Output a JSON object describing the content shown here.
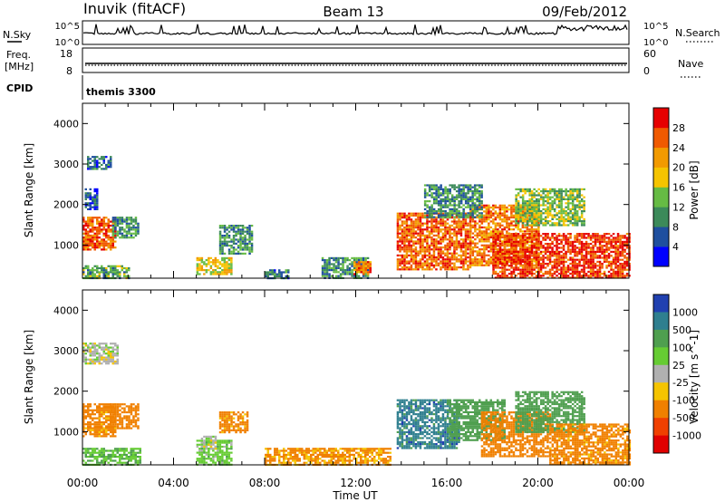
{
  "header": {
    "station": "Inuvik (fitACF)",
    "beam": "Beam 13",
    "date": "09/Feb/2012"
  },
  "top_panels": {
    "nsky_label": "N.Sky",
    "nsky_ticks": [
      "10^5",
      "10^0"
    ],
    "nsearch_label": "N.Search",
    "nsearch_ticks": [
      "10^5",
      "10^0"
    ],
    "freq_label_1": "Freq.",
    "freq_label_2": "[MHz]",
    "freq_ticks": [
      "18",
      "8"
    ],
    "nave_label": "Nave",
    "nave_ticks": [
      "60",
      "0"
    ],
    "cpid_label": "CPID",
    "cpid_value": "themis 3300"
  },
  "colors": {
    "power_scale": [
      "#0000ff",
      "#1f4f9f",
      "#3c8a5a",
      "#66bb44",
      "#f5c400",
      "#f29a00",
      "#f05a00",
      "#e60000"
    ],
    "velocity_scale": [
      "#2040b0",
      "#2f7f8f",
      "#4f9f4f",
      "#66cc33",
      "#b0b0b0",
      "#f5c400",
      "#f08000",
      "#f04000",
      "#e00000"
    ]
  },
  "chart_data": [
    {
      "type": "heatmap",
      "title": "Power",
      "ylabel": "Slant Range [km]",
      "xlabel": "Time UT",
      "x_ticks": [
        "00:00",
        "04:00",
        "08:00",
        "12:00",
        "16:00",
        "20:00",
        "00:00"
      ],
      "xlim_hours": [
        0,
        24
      ],
      "y_ticks": [
        1000,
        2000,
        3000,
        4000
      ],
      "ylim": [
        180,
        4500
      ],
      "colorbar": {
        "label": "Power [dB]",
        "ticks": [
          4,
          8,
          12,
          16,
          20,
          24,
          28
        ],
        "range": [
          0,
          32
        ]
      },
      "regions": [
        {
          "t0": 0.0,
          "t1": 1.4,
          "r0": 900,
          "r1": 1700,
          "value": 26
        },
        {
          "t0": 1.3,
          "t1": 2.4,
          "r0": 1200,
          "r1": 1700,
          "value": 10
        },
        {
          "t0": 0.2,
          "t1": 1.2,
          "r0": 2900,
          "r1": 3200,
          "value": 8
        },
        {
          "t0": 0.1,
          "t1": 0.6,
          "r0": 1900,
          "r1": 2400,
          "value": 6
        },
        {
          "t0": 0.0,
          "t1": 2.0,
          "r0": 200,
          "r1": 500,
          "value": 12
        },
        {
          "t0": 5.0,
          "t1": 6.5,
          "r0": 300,
          "r1": 700,
          "value": 18
        },
        {
          "t0": 6.0,
          "t1": 7.4,
          "r0": 800,
          "r1": 1500,
          "value": 10
        },
        {
          "t0": 8.0,
          "t1": 9.0,
          "r0": 200,
          "r1": 400,
          "value": 8
        },
        {
          "t0": 10.5,
          "t1": 12.5,
          "r0": 200,
          "r1": 700,
          "value": 10
        },
        {
          "t0": 11.9,
          "t1": 12.6,
          "r0": 300,
          "r1": 600,
          "value": 24
        },
        {
          "t0": 13.8,
          "t1": 17.0,
          "r0": 400,
          "r1": 1800,
          "value": 26
        },
        {
          "t0": 17.0,
          "t1": 20.0,
          "r0": 500,
          "r1": 2000,
          "value": 24
        },
        {
          "t0": 18.0,
          "t1": 24.0,
          "r0": 200,
          "r1": 1300,
          "value": 28
        },
        {
          "t0": 15.0,
          "t1": 17.5,
          "r0": 1700,
          "r1": 2500,
          "value": 10
        },
        {
          "t0": 19.0,
          "t1": 22.0,
          "r0": 1500,
          "r1": 2400,
          "value": 14
        }
      ]
    },
    {
      "type": "heatmap",
      "title": "Velocity",
      "ylabel": "Slant Range [km]",
      "xlabel": "Time UT",
      "x_ticks": [
        "00:00",
        "04:00",
        "08:00",
        "12:00",
        "16:00",
        "20:00",
        "00:00"
      ],
      "xlim_hours": [
        0,
        24
      ],
      "y_ticks": [
        1000,
        2000,
        3000,
        4000
      ],
      "ylim": [
        180,
        4500
      ],
      "colorbar": {
        "label": "Velocity [m s^-1]",
        "ticks": [
          "1000",
          "500",
          "100",
          "25",
          "-25",
          "-100",
          "-500",
          "-1000"
        ]
      },
      "regions": [
        {
          "t0": 0.0,
          "t1": 1.4,
          "r0": 900,
          "r1": 1700,
          "value": -150
        },
        {
          "t0": 1.2,
          "t1": 2.4,
          "r0": 1100,
          "r1": 1700,
          "value": -200
        },
        {
          "t0": 0.0,
          "t1": 1.5,
          "r0": 2700,
          "r1": 3200,
          "value": 0
        },
        {
          "t0": 0.0,
          "t1": 2.5,
          "r0": 200,
          "r1": 600,
          "value": 80
        },
        {
          "t0": 5.0,
          "t1": 6.5,
          "r0": 200,
          "r1": 800,
          "value": 60
        },
        {
          "t0": 5.2,
          "t1": 5.8,
          "r0": 600,
          "r1": 900,
          "value": 0
        },
        {
          "t0": 6.0,
          "t1": 7.2,
          "r0": 1000,
          "r1": 1500,
          "value": -150
        },
        {
          "t0": 8.0,
          "t1": 13.5,
          "r0": 200,
          "r1": 600,
          "value": -120
        },
        {
          "t0": 13.8,
          "t1": 16.5,
          "r0": 600,
          "r1": 1800,
          "value": 600
        },
        {
          "t0": 16.0,
          "t1": 18.5,
          "r0": 800,
          "r1": 1800,
          "value": 150
        },
        {
          "t0": 17.5,
          "t1": 20.5,
          "r0": 400,
          "r1": 1500,
          "value": -200
        },
        {
          "t0": 19.0,
          "t1": 22.0,
          "r0": 1000,
          "r1": 2000,
          "value": 200
        },
        {
          "t0": 20.5,
          "t1": 24.0,
          "r0": 200,
          "r1": 1200,
          "value": -150
        }
      ]
    }
  ]
}
